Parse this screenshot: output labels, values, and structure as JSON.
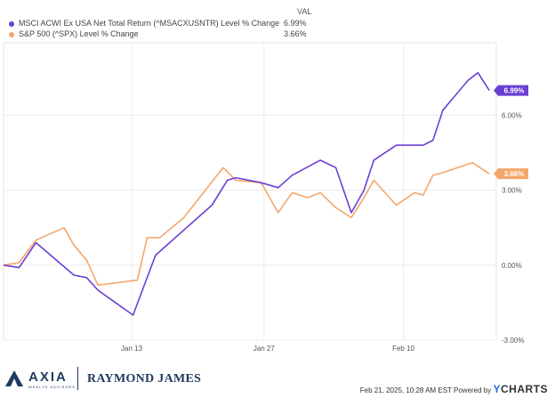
{
  "legend": {
    "header": "VAL",
    "items": [
      {
        "name": "MSCI ACWI Ex USA Net Total Return (^MSACXUSNTR) Level % Change",
        "value": "6.99%",
        "color": "#6b3fd4"
      },
      {
        "name": "S&P 500 (^SPX) Level % Change",
        "value": "3.66%",
        "color": "#f5a66a"
      }
    ]
  },
  "chart_data": {
    "type": "line",
    "x_tick_labels": [
      "Jan 13",
      "Jan 27",
      "Feb 10"
    ],
    "y_tick_labels": [
      "6.00%",
      "3.00%",
      "0.00%",
      "-3.00%"
    ],
    "y_ticks": [
      6,
      3,
      0,
      -3
    ],
    "ylim": [
      -3.0,
      8.9
    ],
    "xlim": [
      0,
      35
    ],
    "x_tick_positions": [
      9.1,
      18.5,
      28.4
    ],
    "grid": true,
    "series": [
      {
        "name": "MSCI ACWI Ex USA Net Total Return (^MSACXUSNTR) Level % Change",
        "color": "#6b3fd4",
        "end_label": "6.99%",
        "x": [
          0,
          1.1,
          2.3,
          5.0,
          5.9,
          6.7,
          9.2,
          10.8,
          14.8,
          15.9,
          16.5,
          18.3,
          19.5,
          20.5,
          22.5,
          23.6,
          24.7,
          25.6,
          26.3,
          27.9,
          29.2,
          29.8,
          30.5,
          31.2,
          33.0,
          33.7,
          34.5
        ],
        "y": [
          0.0,
          -0.1,
          0.9,
          -0.4,
          -0.5,
          -1.0,
          -2.0,
          0.4,
          2.4,
          3.4,
          3.5,
          3.3,
          3.1,
          3.6,
          4.2,
          3.9,
          2.1,
          3.0,
          4.2,
          4.8,
          4.8,
          4.8,
          5.0,
          6.2,
          7.4,
          7.7,
          6.99
        ]
      },
      {
        "name": "S&P 500 (^SPX) Level % Change",
        "color": "#f5a66a",
        "end_label": "3.66%",
        "x": [
          0,
          1.1,
          2.3,
          4.3,
          5.0,
          5.9,
          6.7,
          9.5,
          10.2,
          11.1,
          12.8,
          15.6,
          16.5,
          18.3,
          19.5,
          20.5,
          21.6,
          22.5,
          23.6,
          24.7,
          25.6,
          26.3,
          27.9,
          29.2,
          29.8,
          30.5,
          31.2,
          33.3,
          34.5
        ],
        "y": [
          0.0,
          0.1,
          1.0,
          1.5,
          0.8,
          0.2,
          -0.8,
          -0.6,
          1.1,
          1.1,
          1.9,
          3.9,
          3.4,
          3.3,
          2.1,
          2.9,
          2.7,
          2.9,
          2.3,
          1.9,
          2.7,
          3.4,
          2.4,
          2.9,
          2.8,
          3.6,
          3.7,
          4.1,
          3.66
        ]
      }
    ]
  },
  "footer": {
    "left_logo_name": "AXIA",
    "left_logo_sub": "WEALTH ADVISORS",
    "right_logo_name": "RAYMOND JAMES",
    "timestamp": "Feb 21, 2025, 10:28 AM EST Powered by",
    "brand_prefix": "Y",
    "brand_rest": "CHARTS"
  }
}
